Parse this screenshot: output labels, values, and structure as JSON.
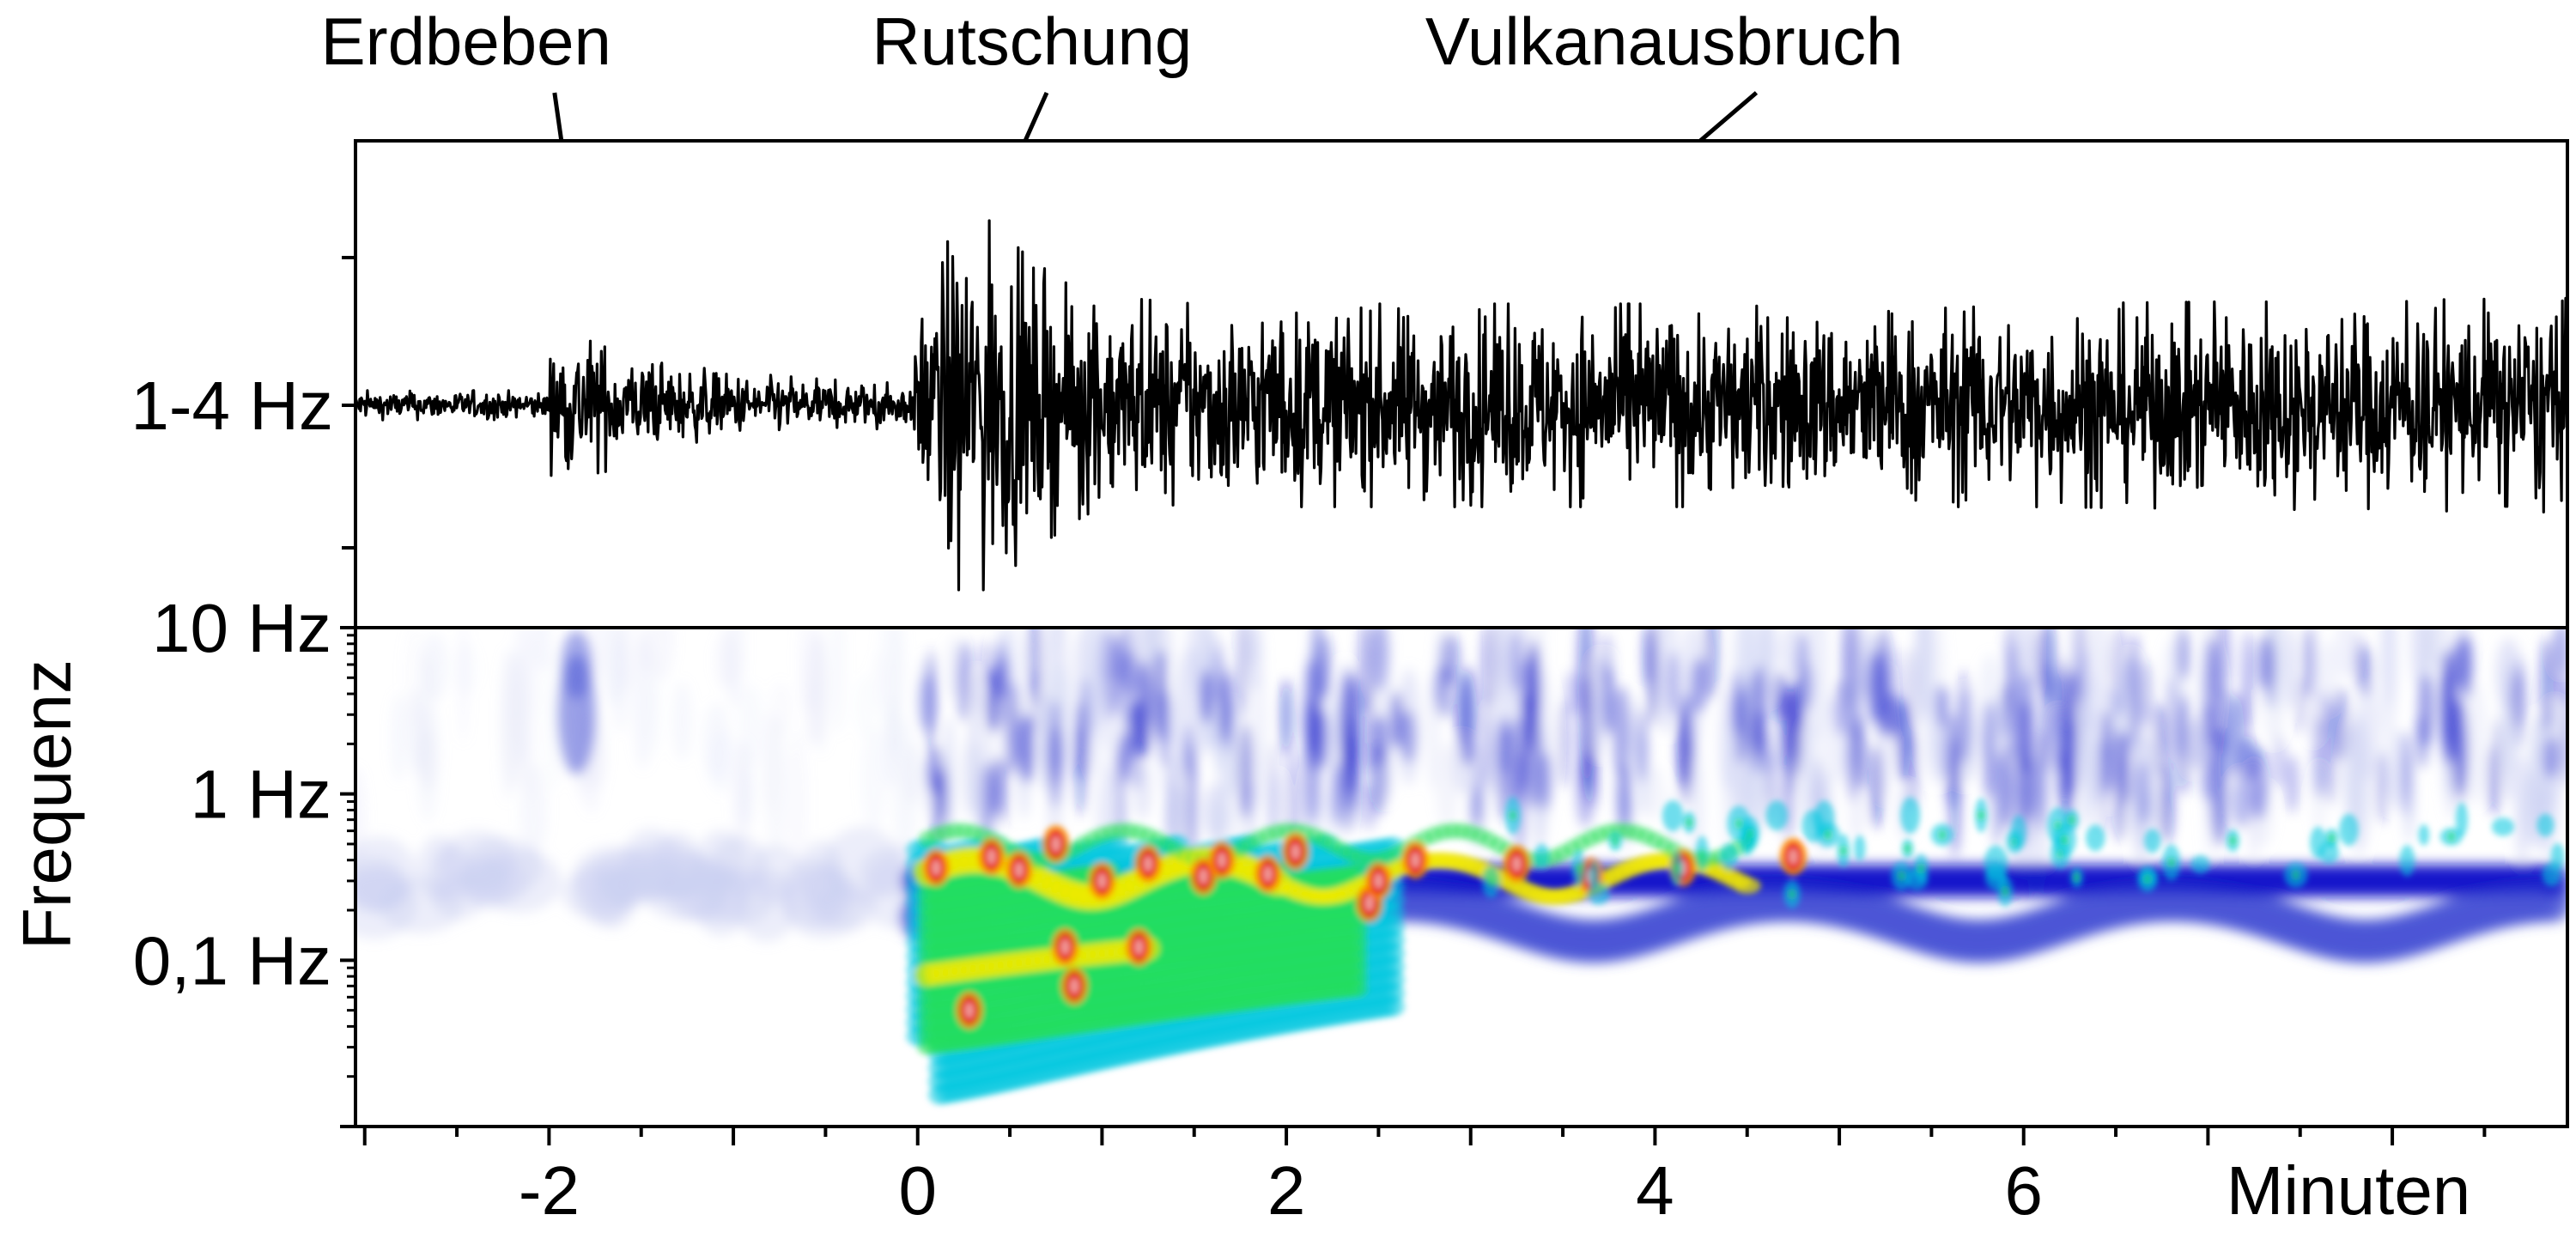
{
  "chart_data": [
    {
      "type": "line",
      "title": "",
      "xlabel": "Minuten",
      "ylabel": "",
      "trace_label": "1-4 Hz",
      "xlim": [
        -3.05,
        8.95
      ],
      "x_ticks": [
        -2,
        0,
        2,
        4,
        6
      ],
      "annotations": [
        {
          "text": "Erdbeben",
          "x": -1.75
        },
        {
          "text": "Rutschung",
          "x": 0.45
        },
        {
          "text": "Vulkanausbruch",
          "x": 3.75
        }
      ],
      "envelope": {
        "x": [
          -3.05,
          -2.0,
          -1.99,
          -1.8,
          -1.5,
          -1.0,
          -0.5,
          -0.02,
          0.0,
          0.2,
          0.4,
          0.6,
          0.9,
          1.5,
          2.5,
          4.0,
          6.0,
          8.95
        ],
        "amplitude": [
          0.08,
          0.08,
          0.38,
          0.42,
          0.25,
          0.18,
          0.14,
          0.12,
          0.55,
          1.0,
          1.0,
          0.8,
          0.6,
          0.55,
          0.55,
          0.55,
          0.55,
          0.58
        ]
      },
      "color": "#000000"
    },
    {
      "type": "heatmap",
      "ylabel": "Frequenz",
      "xlabel": "Minuten",
      "y_scale": "log",
      "ylim_hz": [
        0.01,
        10
      ],
      "y_ticks": [
        {
          "label": "10 Hz",
          "value": 10
        },
        {
          "label": "1 Hz",
          "value": 1
        },
        {
          "label": "0,1 Hz",
          "value": 0.1
        }
      ],
      "x_ticks": [
        -2,
        0,
        2,
        4,
        6
      ],
      "x_tick_labels": [
        "-2",
        "0",
        "2",
        "4",
        "6"
      ],
      "colorscale": [
        "#ffffff",
        "#c9cef2",
        "#4a55d6",
        "#0b12c8",
        "#00c8e0",
        "#26e05a",
        "#f2ea00",
        "#ff8a00",
        "#e61a1a",
        "#f3b8b8"
      ]
    }
  ]
}
